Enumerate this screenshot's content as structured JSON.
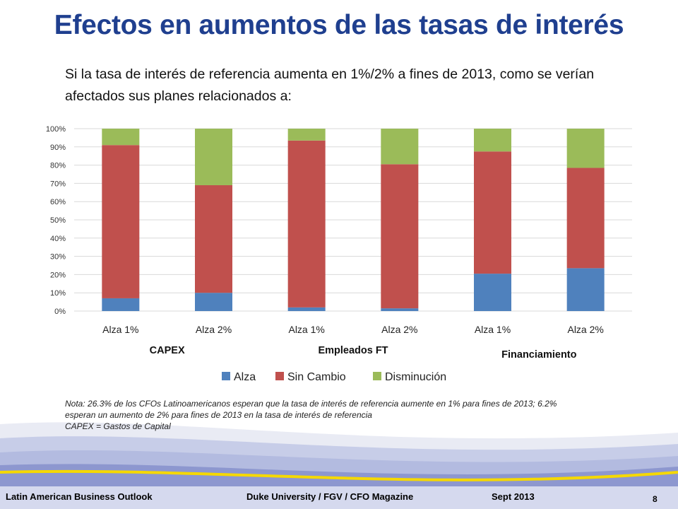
{
  "title": "Efectos en aumentos de las tasas de interés",
  "subtitle": "Si la tasa de interés de referencia aumenta en 1%/2% a fines de 2013, como se verían afectados sus planes relacionados a:",
  "chart_data": {
    "type": "bar",
    "stacked": true,
    "percent_stacked": true,
    "categories": [
      "Alza 1%",
      "Alza 2%",
      "Alza 1%",
      "Alza 2%",
      "Alza 1%",
      "Alza 2%"
    ],
    "groups": [
      {
        "label": "CAPEX",
        "categories": [
          0,
          1
        ]
      },
      {
        "label": "Empleados FT",
        "categories": [
          2,
          3
        ]
      },
      {
        "label": "Financiamiento",
        "categories": [
          4,
          5
        ]
      }
    ],
    "series": [
      {
        "name": "Alza",
        "color": "#4f81bd",
        "values": [
          7,
          10,
          2,
          1.5,
          20.5,
          23.5
        ]
      },
      {
        "name": "Sin Cambio",
        "color": "#c0504d",
        "values": [
          84,
          59,
          91.5,
          79,
          67,
          55
        ]
      },
      {
        "name": "Disminución",
        "color": "#9bbb59",
        "values": [
          9,
          31,
          6.5,
          19.5,
          12.5,
          21.5
        ]
      }
    ],
    "ylim": [
      0,
      100
    ],
    "yticks": [
      "0%",
      "10%",
      "20%",
      "30%",
      "40%",
      "50%",
      "60%",
      "70%",
      "80%",
      "90%",
      "100%"
    ],
    "grid": true,
    "legend": "bottom"
  },
  "note": {
    "line1": "Nota: 26.3% de los CFOs Latinoamericanos esperan que la tasa de interés de referencia aumente en 1% para fines de 2013; 6.2%",
    "line2": "esperan un aumento de 2% para fines de 2013 en la tasa de interés de referencia",
    "line3": "CAPEX = Gastos de Capital"
  },
  "footer": {
    "left": "Latin American Business Outlook",
    "center": "Duke University / FGV / CFO Magazine",
    "right": "Sept 2013",
    "page": "8"
  }
}
